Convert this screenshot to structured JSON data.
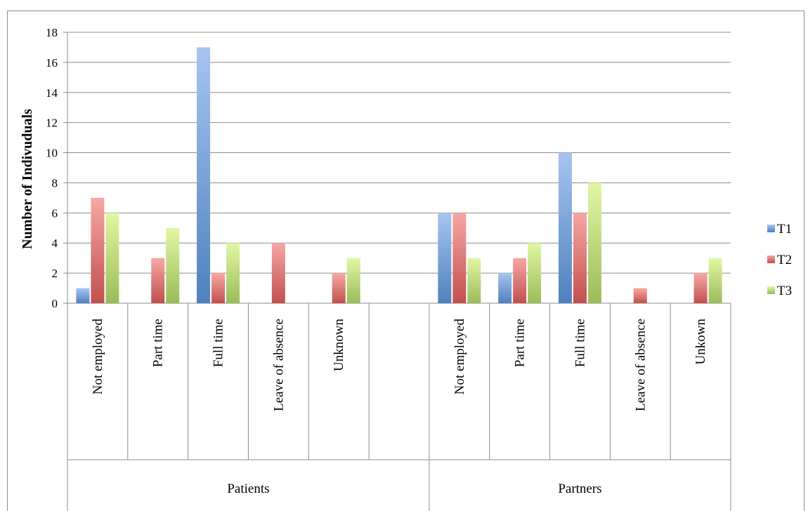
{
  "chart_data": {
    "type": "bar",
    "title": "",
    "ylabel": "Number of Indivuduals",
    "xlabel": "",
    "ylim": [
      0,
      18
    ],
    "ytick_step": 2,
    "grid": true,
    "legend_placement": "right",
    "groups": [
      {
        "label": "Patients",
        "categories": [
          "Not employed",
          "Part time",
          "Full time",
          "Leave of absence",
          "Unknown",
          ""
        ]
      },
      {
        "label": "Partners",
        "categories": [
          "Not employed",
          "Part time",
          "Full time",
          "Leave of absence",
          "Unkown"
        ]
      }
    ],
    "categories": [
      "Not employed",
      "Part time",
      "Full time",
      "Leave of absence",
      "Unknown",
      "",
      "Not employed",
      "Part time",
      "Full time",
      "Leave of absence",
      "Unkown"
    ],
    "series": [
      {
        "name": "T1",
        "color": "#4f81bd",
        "values": [
          1,
          0,
          17,
          0,
          0,
          0,
          6,
          2,
          10,
          0,
          0
        ]
      },
      {
        "name": "T2",
        "color": "#c0504d",
        "values": [
          7,
          3,
          2,
          4,
          2,
          0,
          6,
          3,
          6,
          1,
          2
        ]
      },
      {
        "name": "T3",
        "color": "#9bbb59",
        "values": [
          6,
          5,
          4,
          0,
          3,
          0,
          3,
          4,
          8,
          0,
          3
        ]
      }
    ]
  }
}
